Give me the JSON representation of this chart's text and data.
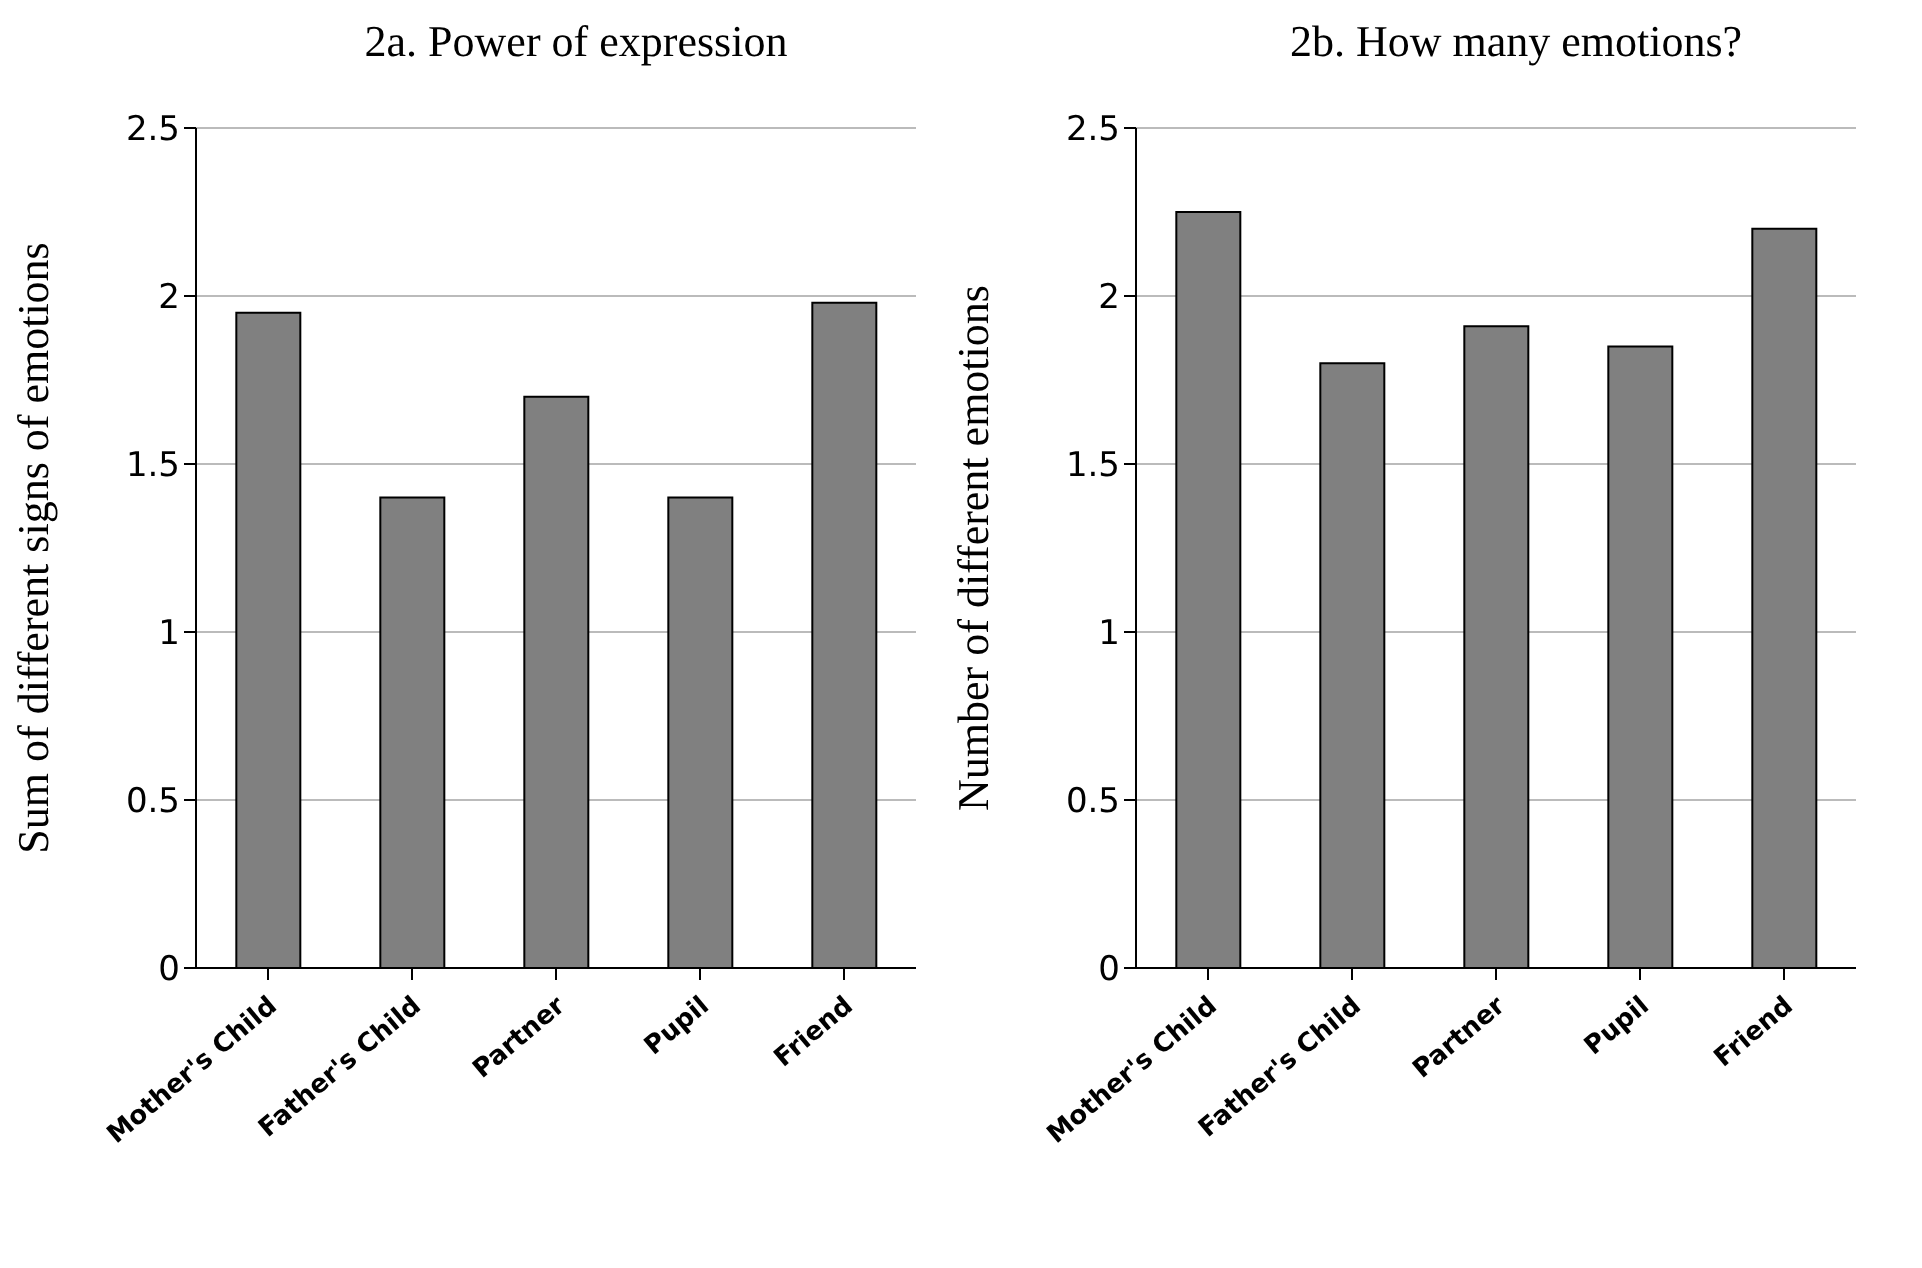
{
  "chart_data": [
    {
      "type": "bar",
      "title": "2a. Power of expression",
      "ylabel": "Sum of different signs of emotions",
      "categories": [
        "Mother's Child",
        "Father's Child",
        "Partner",
        "Pupil",
        "Friend"
      ],
      "values": [
        1.95,
        1.4,
        1.7,
        1.4,
        1.98
      ],
      "color": "#808080",
      "ylim": [
        0,
        2.5
      ],
      "yticks": [
        0,
        0.5,
        1,
        1.5,
        2,
        2.5
      ],
      "grid": "y"
    },
    {
      "type": "bar",
      "title": "2b. How many emotions?",
      "ylabel": "Number of different emotions",
      "categories": [
        "Mother's Child",
        "Father's Child",
        "Partner",
        "Pupil",
        "Friend"
      ],
      "values": [
        2.25,
        1.8,
        1.91,
        1.85,
        2.2
      ],
      "color": "#808080",
      "ylim": [
        0,
        2.5
      ],
      "yticks": [
        0,
        0.5,
        1,
        1.5,
        2,
        2.5
      ],
      "grid": "y"
    }
  ]
}
